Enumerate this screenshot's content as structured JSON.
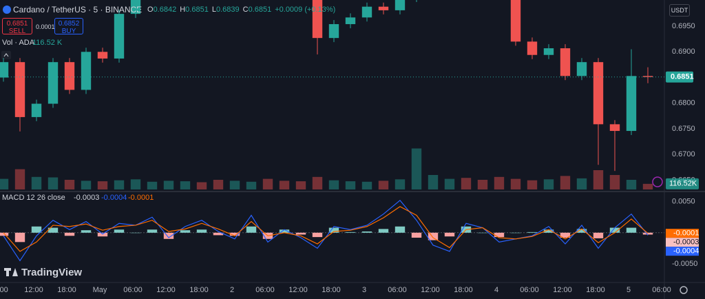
{
  "header": {
    "symbol": "Cardano / TetherUS · 5 · BINANCE",
    "ohlc": [
      {
        "key": "O",
        "value": "0.6842"
      },
      {
        "key": "H",
        "value": "0.6851"
      },
      {
        "key": "L",
        "value": "0.6839"
      },
      {
        "key": "C",
        "value": "0.6851"
      }
    ],
    "change": "+0.0009 (+0.13%)",
    "sell_price": "0.6851",
    "sell_label": "SELL",
    "spread": "0.0001",
    "buy_price": "0.6852",
    "buy_label": "BUY",
    "currency": "USDT",
    "logo": "TradingView"
  },
  "chart_data": [
    {
      "type": "candlestick",
      "colors": {
        "up": "#26a69a",
        "down": "#ef5350"
      },
      "x": [
        -17.5,
        -14.5,
        -11.5,
        -8.5,
        -5.5,
        -2.5,
        0.5,
        3.5,
        6.5,
        9.5,
        12.5,
        15.5,
        18.5,
        21.5,
        24.5,
        27.5,
        30.5,
        33.5,
        36.5,
        39.5,
        42.5,
        45.5,
        48.5,
        51.5,
        54.5,
        57.5,
        60.5,
        63.5,
        66.5,
        69.5,
        72.5,
        75.5,
        78.5,
        81.5,
        84.5,
        87.5,
        90.5,
        93.5,
        96.5,
        99.5
      ],
      "open": [
        0.685,
        0.688,
        0.6773,
        0.6799,
        0.688,
        0.6826,
        0.69,
        0.6887,
        0.6974,
        0.7015,
        0.702,
        0.703,
        0.704,
        0.7035,
        0.703,
        0.704,
        0.7045,
        0.7035,
        0.7025,
        0.701,
        0.6927,
        0.6954,
        0.6967,
        0.6988,
        0.6981,
        0.7005,
        0.703,
        0.704,
        0.705,
        0.7045,
        0.703,
        0.702,
        0.692,
        0.6894,
        0.6907,
        0.6853,
        0.688,
        0.6759,
        0.6746,
        0.6853
      ],
      "high": [
        0.6888,
        0.6888,
        0.6807,
        0.6888,
        0.6888,
        0.6908,
        0.6908,
        0.6982,
        0.7023,
        0.7028,
        0.7038,
        0.7048,
        0.7048,
        0.7043,
        0.7048,
        0.7053,
        0.7053,
        0.7043,
        0.7033,
        0.7018,
        0.6962,
        0.6975,
        0.6996,
        0.6996,
        0.7013,
        0.7038,
        0.7048,
        0.7058,
        0.7058,
        0.7053,
        0.7038,
        0.7028,
        0.6928,
        0.6915,
        0.6915,
        0.6888,
        0.6888,
        0.6767,
        0.6905,
        0.687
      ],
      "low": [
        0.6842,
        0.6745,
        0.6765,
        0.6791,
        0.6818,
        0.6818,
        0.6879,
        0.6879,
        0.6966,
        0.7007,
        0.7012,
        0.7022,
        0.7027,
        0.7022,
        0.7022,
        0.7032,
        0.7027,
        0.7017,
        0.7002,
        0.6895,
        0.6919,
        0.6946,
        0.6959,
        0.6973,
        0.6973,
        0.6997,
        0.7022,
        0.7032,
        0.7037,
        0.7022,
        0.7012,
        0.6912,
        0.6886,
        0.6886,
        0.6845,
        0.6845,
        0.668,
        0.6668,
        0.6738,
        0.6839
      ],
      "close": [
        0.688,
        0.6773,
        0.6799,
        0.688,
        0.6826,
        0.69,
        0.6887,
        0.6974,
        0.7015,
        0.702,
        0.703,
        0.704,
        0.7035,
        0.703,
        0.704,
        0.7045,
        0.7035,
        0.7025,
        0.701,
        0.6927,
        0.6954,
        0.6967,
        0.6988,
        0.6981,
        0.7005,
        0.703,
        0.704,
        0.705,
        0.7045,
        0.703,
        0.702,
        0.692,
        0.6894,
        0.6907,
        0.6853,
        0.688,
        0.6759,
        0.6746,
        0.6853,
        0.6851
      ],
      "xlim": [
        -18.125,
        102.5
      ],
      "xticks": [
        {
          "value": -18,
          "label": "0:00"
        },
        {
          "value": -12,
          "label": "12:00"
        },
        {
          "value": -6,
          "label": "18:00"
        },
        {
          "value": 0,
          "label": "May"
        },
        {
          "value": 6,
          "label": "06:00"
        },
        {
          "value": 12,
          "label": "12:00"
        },
        {
          "value": 18,
          "label": "18:00"
        },
        {
          "value": 24,
          "label": "2"
        },
        {
          "value": 30,
          "label": "06:00"
        },
        {
          "value": 36,
          "label": "12:00"
        },
        {
          "value": 42,
          "label": "18:00"
        },
        {
          "value": 48,
          "label": "3"
        },
        {
          "value": 54,
          "label": "06:00"
        },
        {
          "value": 60,
          "label": "12:00"
        },
        {
          "value": 66,
          "label": "18:00"
        },
        {
          "value": 72,
          "label": "4"
        },
        {
          "value": 78,
          "label": "06:00"
        },
        {
          "value": 84,
          "label": "12:00"
        },
        {
          "value": 90,
          "label": "18:00"
        },
        {
          "value": 96,
          "label": "5"
        },
        {
          "value": 102,
          "label": "06:00"
        }
      ],
      "ylim": [
        0.6632,
        0.7001
      ],
      "yticks": [
        {
          "value": 0.695,
          "label": "0.6950"
        },
        {
          "value": 0.69,
          "label": "0.6900"
        },
        {
          "value": 0.68,
          "label": "0.6800"
        },
        {
          "value": 0.675,
          "label": "0.6750"
        },
        {
          "value": 0.67,
          "label": "0.6700"
        },
        {
          "value": 0.665,
          "label": "0.6650"
        }
      ],
      "last_price": 0.6851
    },
    {
      "type": "volume",
      "title": "Vol · ADA",
      "legend_value": "116.52 K",
      "last_value_label": "116.52K",
      "x": [
        -17.5,
        -14.5,
        -11.5,
        -8.5,
        -5.5,
        -2.5,
        0.5,
        3.5,
        6.5,
        9.5,
        12.5,
        15.5,
        18.5,
        21.5,
        24.5,
        27.5,
        30.5,
        33.5,
        36.5,
        39.5,
        42.5,
        45.5,
        48.5,
        51.5,
        54.5,
        57.5,
        60.5,
        63.5,
        66.5,
        69.5,
        72.5,
        75.5,
        78.5,
        81.5,
        84.5,
        87.5,
        90.5,
        93.5,
        96.5,
        99.5
      ],
      "values": [
        220,
        420,
        260,
        250,
        200,
        180,
        170,
        190,
        210,
        160,
        180,
        170,
        150,
        200,
        180,
        160,
        220,
        180,
        170,
        260,
        190,
        170,
        160,
        180,
        210,
        850,
        300,
        220,
        240,
        200,
        260,
        220,
        190,
        210,
        280,
        230,
        400,
        300,
        200,
        116.52
      ],
      "ylim": [
        0,
        1000
      ]
    },
    {
      "type": "macd",
      "title": "MACD 12 26 close",
      "x": [
        -17.5,
        -14.5,
        -11.5,
        -8.5,
        -5.5,
        -2.5,
        0.5,
        3.5,
        6.5,
        9.5,
        12.5,
        15.5,
        18.5,
        21.5,
        24.5,
        27.5,
        30.5,
        33.5,
        36.5,
        39.5,
        42.5,
        45.5,
        48.5,
        51.5,
        54.5,
        57.5,
        60.5,
        63.5,
        66.5,
        69.5,
        72.5,
        75.5,
        78.5,
        81.5,
        84.5,
        87.5,
        90.5,
        93.5,
        96.5,
        99.5
      ],
      "series": [
        {
          "style": "histogram",
          "colors": {
            "up": "#80cbc4",
            "down": "#f7a1a1"
          },
          "label_color": "#f7c1c1",
          "values": [
            -0.0005,
            -0.0015,
            0.001,
            0.0008,
            -0.0005,
            0.0004,
            -0.0006,
            0.0005,
            0.0,
            0.0005,
            -0.001,
            0.0004,
            0.0005,
            -0.0004,
            -0.0005,
            0.001,
            -0.001,
            0.0005,
            -0.0003,
            -0.0007,
            0.0008,
            0.0001,
            0.0002,
            0.0006,
            0.001,
            -0.0008,
            -0.0012,
            -0.0006,
            0.001,
            0.0,
            -0.0007,
            0.0,
            0.0001,
            0.0005,
            -0.0008,
            0.0006,
            -0.0009,
            0.0008,
            0.0008,
            -0.0003
          ]
        },
        {
          "style": "line",
          "color": "#2962ff",
          "values": [
            -0.0005,
            -0.0045,
            -0.0005,
            0.002,
            0.0005,
            0.0018,
            -0.0002,
            0.0015,
            0.0012,
            0.0025,
            -0.0008,
            0.001,
            0.002,
            0.0002,
            -0.001,
            0.0028,
            -0.0015,
            0.0005,
            -0.0008,
            -0.0025,
            0.001,
            0.0005,
            0.0012,
            0.003,
            0.0052,
            0.002,
            -0.002,
            -0.003,
            0.0015,
            0.0008,
            -0.0015,
            -0.001,
            -0.0005,
            0.001,
            -0.0018,
            0.0012,
            -0.0025,
            0.0008,
            0.003,
            -0.0004
          ]
        },
        {
          "style": "line",
          "color": "#ff6d00",
          "values": [
            0.0,
            -0.003,
            -0.0015,
            0.0012,
            0.001,
            0.0014,
            0.0004,
            0.001,
            0.0012,
            0.002,
            0.0002,
            0.0006,
            0.0015,
            0.0006,
            -0.0005,
            0.0018,
            -0.0005,
            0.0,
            -0.0005,
            -0.0018,
            0.0002,
            0.0004,
            0.001,
            0.0024,
            0.0042,
            0.0028,
            -0.0008,
            -0.0024,
            0.0005,
            0.0008,
            -0.0008,
            -0.001,
            -0.0006,
            0.0005,
            -0.001,
            0.0006,
            -0.0016,
            0.0,
            0.0022,
            -0.0001
          ]
        }
      ],
      "ylim": [
        -0.008,
        0.0064
      ],
      "yticks": [
        {
          "value": 0.005,
          "label": "0.0050"
        },
        {
          "value": -0.005,
          "label": "-0.0050"
        }
      ]
    }
  ]
}
